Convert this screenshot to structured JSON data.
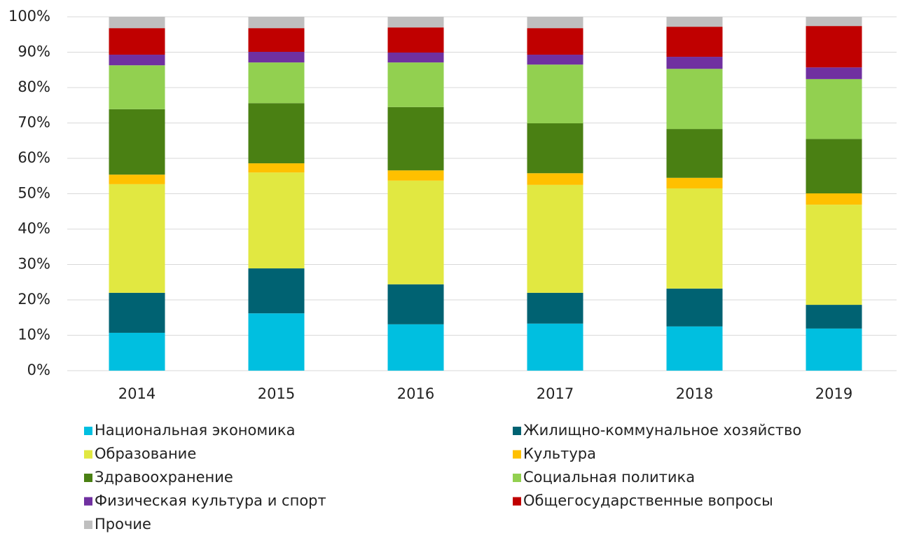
{
  "chart_data": {
    "type": "stacked_bar",
    "categories": [
      "2014",
      "2015",
      "2016",
      "2017",
      "2018",
      "2019"
    ],
    "ylim": [
      0,
      100
    ],
    "yticks": [
      {
        "value": 0,
        "label": "0%"
      },
      {
        "value": 10,
        "label": "10%"
      },
      {
        "value": 20,
        "label": "20%"
      },
      {
        "value": 30,
        "label": "30%"
      },
      {
        "value": 40,
        "label": "40%"
      },
      {
        "value": 50,
        "label": "50%"
      },
      {
        "value": 60,
        "label": "60%"
      },
      {
        "value": 70,
        "label": "70%"
      },
      {
        "value": 80,
        "label": "80%"
      },
      {
        "value": 90,
        "label": "90%"
      },
      {
        "value": 100,
        "label": "100%"
      }
    ],
    "grid": true,
    "legend": "bottom",
    "series": [
      {
        "name": "Национальная экономика",
        "color": "#00bfe0",
        "values": [
          10.7,
          16.2,
          13.1,
          13.3,
          12.5,
          11.9
        ]
      },
      {
        "name": "Жилищно-коммунальное хозяйство",
        "color": "#006272",
        "values": [
          11.3,
          12.7,
          11.3,
          8.7,
          10.7,
          6.7
        ]
      },
      {
        "name": "Образование",
        "color": "#e1e841",
        "values": [
          30.7,
          27.1,
          29.3,
          30.5,
          28.3,
          28.3
        ]
      },
      {
        "name": "Культура",
        "color": "#ffc000",
        "values": [
          2.7,
          2.6,
          2.9,
          3.3,
          3.0,
          3.2
        ]
      },
      {
        "name": "Здравоохранение",
        "color": "#4a8013",
        "values": [
          18.5,
          17.0,
          17.9,
          14.1,
          13.8,
          15.4
        ]
      },
      {
        "name": "Социальная политика",
        "color": "#92d050",
        "values": [
          12.4,
          11.5,
          12.6,
          16.6,
          17.0,
          16.9
        ]
      },
      {
        "name": "Физическая культура и спорт",
        "color": "#7030a0",
        "values": [
          3.0,
          3.0,
          2.8,
          2.8,
          3.4,
          3.3
        ]
      },
      {
        "name": "Общегосударственные вопросы",
        "color": "#c00000",
        "values": [
          7.5,
          6.7,
          7.1,
          7.5,
          8.5,
          11.7
        ]
      },
      {
        "name": "Прочие",
        "color": "#bfbfbf",
        "values": [
          3.2,
          3.2,
          3.0,
          3.2,
          2.8,
          2.6
        ]
      }
    ]
  }
}
